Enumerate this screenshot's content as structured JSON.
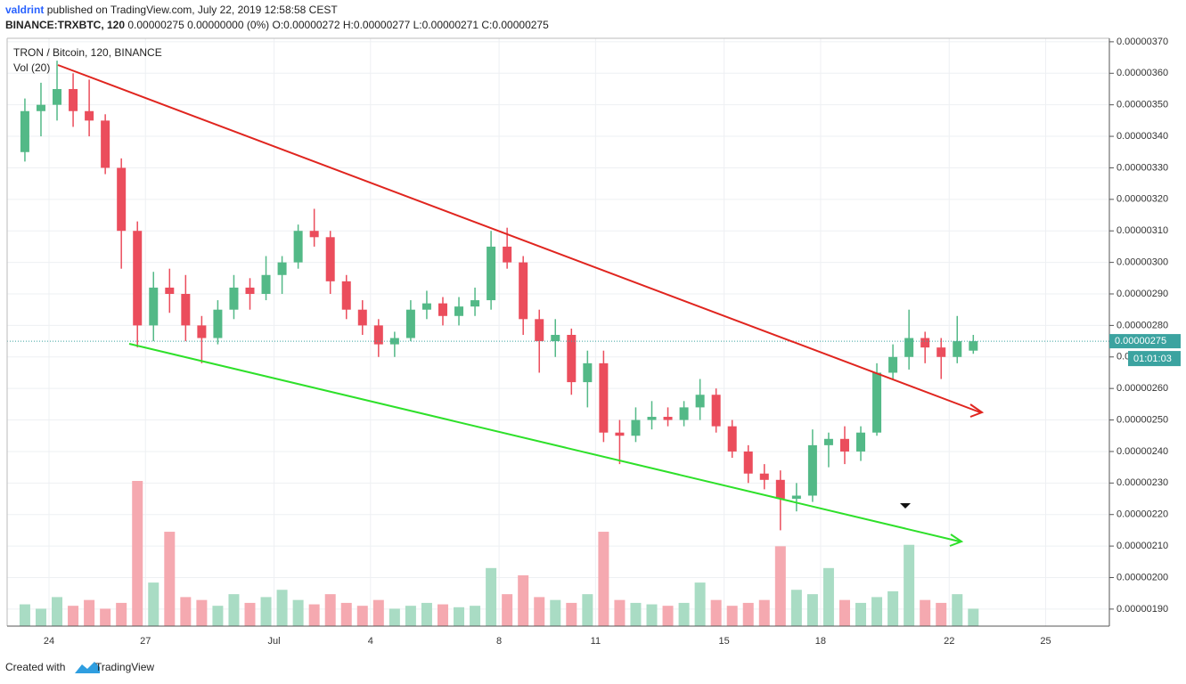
{
  "header": {
    "author": "valdrint",
    "published": "published on TradingView.com, July 22, 2019 12:58:58 CEST",
    "symbol": "BINANCE:TRXBTC, 120",
    "quote": "0.00000275 0.00000000 (0%) O:0.00000272 H:0.00000277 L:0.00000271 C:0.00000275"
  },
  "footer": {
    "created": "Created with",
    "brand": "TradingView"
  },
  "chart_data": {
    "type": "candlestick",
    "title": "TRON / Bitcoin, 120, BINANCE",
    "categories": [
      null,
      null,
      "24",
      null,
      null,
      null,
      null,
      null,
      "27",
      null,
      null,
      null,
      null,
      null,
      null,
      null,
      "Jul",
      null,
      null,
      null,
      null,
      null,
      "4",
      null,
      null,
      null,
      null,
      null,
      null,
      null,
      "8",
      null,
      null,
      null,
      null,
      null,
      "11",
      null,
      null,
      null,
      null,
      null,
      null,
      null,
      "15",
      null,
      null,
      null,
      null,
      null,
      "18",
      null,
      null,
      null,
      null,
      null,
      null,
      null,
      "22",
      null,
      null,
      null,
      null,
      null,
      "25"
    ],
    "open": [
      3.35e-06,
      3.48e-06,
      3.5e-06,
      3.55e-06,
      3.48e-06,
      3.45e-06,
      3.3e-06,
      3.1e-06,
      2.8e-06,
      2.92e-06,
      2.9e-06,
      2.8e-06,
      2.76e-06,
      2.85e-06,
      2.92e-06,
      2.9e-06,
      2.96e-06,
      3e-06,
      3.1e-06,
      3.08e-06,
      2.94e-06,
      2.85e-06,
      2.8e-06,
      2.74e-06,
      2.76e-06,
      2.85e-06,
      2.87e-06,
      2.83e-06,
      2.86e-06,
      2.88e-06,
      3.05e-06,
      3e-06,
      2.82e-06,
      2.75e-06,
      2.77e-06,
      2.62e-06,
      2.68e-06,
      2.46e-06,
      2.45e-06,
      2.5e-06,
      2.51e-06,
      2.5e-06,
      2.54e-06,
      2.58e-06,
      2.48e-06,
      2.4e-06,
      2.33e-06,
      2.31e-06,
      2.25e-06,
      2.26e-06,
      2.42e-06,
      2.44e-06,
      2.4e-06,
      2.46e-06,
      2.65e-06,
      2.7e-06,
      2.76e-06,
      2.73e-06,
      2.7e-06,
      2.72e-06,
      null,
      null,
      null,
      null,
      null
    ],
    "high": [
      3.52e-06,
      3.57e-06,
      3.64e-06,
      3.6e-06,
      3.58e-06,
      3.47e-06,
      3.33e-06,
      3.13e-06,
      2.97e-06,
      2.98e-06,
      2.96e-06,
      2.83e-06,
      2.88e-06,
      2.96e-06,
      2.95e-06,
      3.02e-06,
      3.02e-06,
      3.12e-06,
      3.17e-06,
      3.1e-06,
      2.96e-06,
      2.88e-06,
      2.82e-06,
      2.78e-06,
      2.88e-06,
      2.91e-06,
      2.89e-06,
      2.89e-06,
      2.92e-06,
      3.1e-06,
      3.11e-06,
      3.02e-06,
      2.85e-06,
      2.82e-06,
      2.79e-06,
      2.72e-06,
      2.72e-06,
      2.5e-06,
      2.54e-06,
      2.56e-06,
      2.54e-06,
      2.56e-06,
      2.63e-06,
      2.6e-06,
      2.5e-06,
      2.42e-06,
      2.36e-06,
      2.34e-06,
      2.3e-06,
      2.47e-06,
      2.46e-06,
      2.48e-06,
      2.48e-06,
      2.68e-06,
      2.74e-06,
      2.85e-06,
      2.78e-06,
      2.76e-06,
      2.83e-06,
      2.77e-06,
      null,
      null,
      null,
      null,
      null
    ],
    "low": [
      3.32e-06,
      3.4e-06,
      3.45e-06,
      3.43e-06,
      3.4e-06,
      3.28e-06,
      2.98e-06,
      2.73e-06,
      2.75e-06,
      2.84e-06,
      2.75e-06,
      2.68e-06,
      2.74e-06,
      2.82e-06,
      2.85e-06,
      2.88e-06,
      2.9e-06,
      2.98e-06,
      3.05e-06,
      2.9e-06,
      2.82e-06,
      2.77e-06,
      2.7e-06,
      2.7e-06,
      2.75e-06,
      2.82e-06,
      2.8e-06,
      2.8e-06,
      2.83e-06,
      2.85e-06,
      2.98e-06,
      2.77e-06,
      2.65e-06,
      2.7e-06,
      2.58e-06,
      2.54e-06,
      2.43e-06,
      2.36e-06,
      2.43e-06,
      2.47e-06,
      2.48e-06,
      2.48e-06,
      2.5e-06,
      2.46e-06,
      2.38e-06,
      2.3e-06,
      2.28e-06,
      2.15e-06,
      2.21e-06,
      2.24e-06,
      2.35e-06,
      2.36e-06,
      2.37e-06,
      2.45e-06,
      2.63e-06,
      2.66e-06,
      2.68e-06,
      2.63e-06,
      2.68e-06,
      2.71e-06,
      null,
      null,
      null,
      null,
      null
    ],
    "close": [
      3.48e-06,
      3.5e-06,
      3.55e-06,
      3.48e-06,
      3.45e-06,
      3.3e-06,
      3.1e-06,
      2.8e-06,
      2.92e-06,
      2.9e-06,
      2.8e-06,
      2.76e-06,
      2.85e-06,
      2.92e-06,
      2.9e-06,
      2.96e-06,
      3e-06,
      3.1e-06,
      3.08e-06,
      2.94e-06,
      2.85e-06,
      2.8e-06,
      2.74e-06,
      2.76e-06,
      2.85e-06,
      2.87e-06,
      2.83e-06,
      2.86e-06,
      2.88e-06,
      3.05e-06,
      3e-06,
      2.82e-06,
      2.75e-06,
      2.77e-06,
      2.62e-06,
      2.68e-06,
      2.46e-06,
      2.45e-06,
      2.5e-06,
      2.51e-06,
      2.5e-06,
      2.54e-06,
      2.58e-06,
      2.48e-06,
      2.4e-06,
      2.33e-06,
      2.31e-06,
      2.25e-06,
      2.26e-06,
      2.42e-06,
      2.44e-06,
      2.4e-06,
      2.46e-06,
      2.65e-06,
      2.7e-06,
      2.76e-06,
      2.73e-06,
      2.7e-06,
      2.75e-06,
      2.75e-06,
      null,
      null,
      null,
      null,
      null
    ],
    "up_color": "#53b987",
    "down_color": "#eb4d5c",
    "volume": {
      "name": "Vol (20)",
      "up_color": "#a9dcc4",
      "down_color": "#f5a9b0",
      "values": [
        15,
        12,
        20,
        14,
        18,
        12,
        16,
        100,
        30,
        65,
        20,
        18,
        14,
        22,
        16,
        20,
        25,
        18,
        15,
        22,
        16,
        14,
        18,
        12,
        14,
        16,
        15,
        13,
        14,
        40,
        22,
        35,
        20,
        18,
        16,
        22,
        65,
        18,
        16,
        15,
        14,
        16,
        30,
        18,
        14,
        16,
        18,
        55,
        25,
        22,
        40,
        18,
        16,
        20,
        24,
        56,
        18,
        16,
        22,
        12,
        null,
        null,
        null,
        null,
        null
      ]
    },
    "ylim": [
      1.846e-06,
      3.711e-06
    ],
    "yticks": [
      {
        "value": 1.9e-06,
        "label": "0.00000190"
      },
      {
        "value": 2e-06,
        "label": "0.00000200"
      },
      {
        "value": 2.1e-06,
        "label": "0.00000210"
      },
      {
        "value": 2.2e-06,
        "label": "0.00000220"
      },
      {
        "value": 2.3e-06,
        "label": "0.00000230"
      },
      {
        "value": 2.4e-06,
        "label": "0.00000240"
      },
      {
        "value": 2.5e-06,
        "label": "0.00000250"
      },
      {
        "value": 2.6e-06,
        "label": "0.00000260"
      },
      {
        "value": 2.7e-06,
        "label": "0.00000270"
      },
      {
        "value": 2.8e-06,
        "label": "0.00000280"
      },
      {
        "value": 2.9e-06,
        "label": "0.00000290"
      },
      {
        "value": 3e-06,
        "label": "0.00000300"
      },
      {
        "value": 3.1e-06,
        "label": "0.00000310"
      },
      {
        "value": 3.2e-06,
        "label": "0.00000320"
      },
      {
        "value": 3.3e-06,
        "label": "0.00000330"
      },
      {
        "value": 3.4e-06,
        "label": "0.00000340"
      },
      {
        "value": 3.5e-06,
        "label": "0.00000350"
      },
      {
        "value": 3.6e-06,
        "label": "0.00000360"
      },
      {
        "value": 3.7e-06,
        "label": "0.00000370"
      }
    ],
    "grid": true,
    "last_price": {
      "value": 2.75e-06,
      "label": "0.00000275",
      "color": "#3ba3a0"
    },
    "countdown": "01:01:03"
  }
}
